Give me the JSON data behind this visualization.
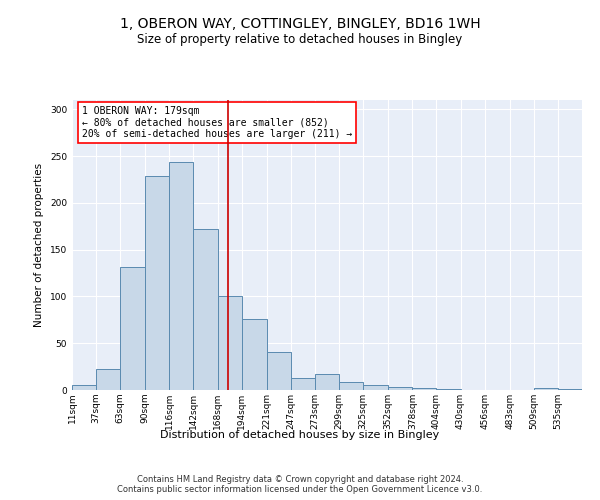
{
  "title": "1, OBERON WAY, COTTINGLEY, BINGLEY, BD16 1WH",
  "subtitle": "Size of property relative to detached houses in Bingley",
  "xlabel": "Distribution of detached houses by size in Bingley",
  "ylabel": "Number of detached properties",
  "footer1": "Contains HM Land Registry data © Crown copyright and database right 2024.",
  "footer2": "Contains public sector information licensed under the Open Government Licence v3.0.",
  "annotation_line1": "1 OBERON WAY: 179sqm",
  "annotation_line2": "← 80% of detached houses are smaller (852)",
  "annotation_line3": "20% of semi-detached houses are larger (211) →",
  "property_size": 179,
  "bar_categories": [
    "11sqm",
    "37sqm",
    "63sqm",
    "90sqm",
    "116sqm",
    "142sqm",
    "168sqm",
    "194sqm",
    "221sqm",
    "247sqm",
    "273sqm",
    "299sqm",
    "325sqm",
    "352sqm",
    "378sqm",
    "404sqm",
    "430sqm",
    "456sqm",
    "483sqm",
    "509sqm",
    "535sqm"
  ],
  "bins": [
    11,
    37,
    63,
    90,
    116,
    142,
    168,
    194,
    221,
    247,
    273,
    299,
    325,
    352,
    378,
    404,
    430,
    456,
    483,
    509,
    535,
    561
  ],
  "counts": [
    5,
    22,
    131,
    229,
    244,
    172,
    101,
    76,
    41,
    13,
    17,
    9,
    5,
    3,
    2,
    1,
    0,
    0,
    0,
    2,
    1
  ],
  "bar_color": "#c8d8e8",
  "bar_edge_color": "#5a8ab0",
  "vline_color": "#cc0000",
  "background_color": "#e8eef8",
  "ylim": [
    0,
    310
  ],
  "yticks": [
    0,
    50,
    100,
    150,
    200,
    250,
    300
  ],
  "title_fontsize": 10,
  "subtitle_fontsize": 8.5,
  "xlabel_fontsize": 8,
  "ylabel_fontsize": 7.5,
  "tick_fontsize": 6.5,
  "footer_fontsize": 6,
  "annot_fontsize": 7
}
